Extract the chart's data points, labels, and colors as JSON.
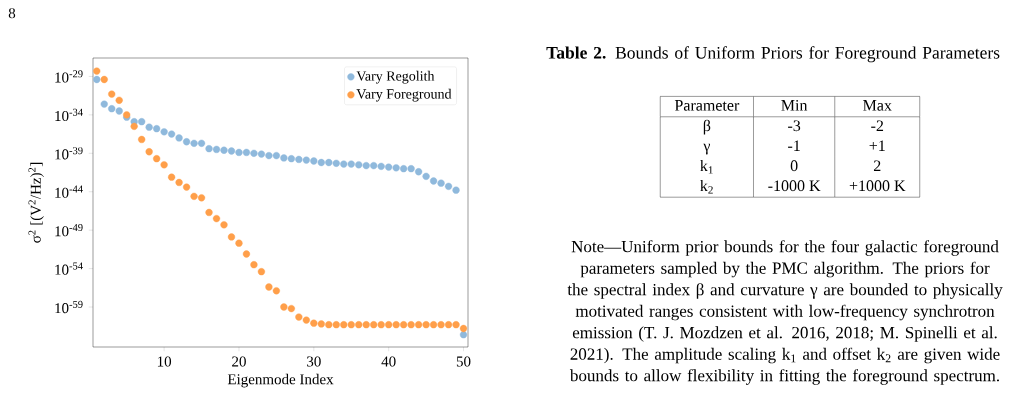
{
  "chart_data": [
    {
      "type": "scatter",
      "xlabel": "Eigenmode Index",
      "ylabel": "σ$^{2}$ [(V$^{2}$/Hz)$^{2}$]",
      "x": [
        1,
        2,
        3,
        4,
        5,
        6,
        7,
        8,
        9,
        10,
        11,
        12,
        13,
        14,
        15,
        16,
        17,
        18,
        19,
        20,
        21,
        22,
        23,
        24,
        25,
        26,
        27,
        28,
        29,
        30,
        31,
        32,
        33,
        34,
        35,
        36,
        37,
        38,
        39,
        40,
        41,
        42,
        43,
        44,
        45,
        46,
        47,
        48,
        49,
        50
      ],
      "series": [
        {
          "name": "Vary Regolith",
          "color": "#8fb9dc",
          "values": [
            4e-30,
            2.5e-33,
            6.3e-34,
            3.2e-34,
            5e-35,
            1.3e-35,
            1.3e-35,
            2.5e-36,
            1.6e-36,
            6.3e-37,
            3.2e-37,
            1e-37,
            3.2e-38,
            2e-38,
            2e-38,
            4e-39,
            3.2e-39,
            2.5e-39,
            2e-39,
            1.3e-39,
            1.3e-39,
            1e-39,
            7.9e-40,
            5e-40,
            5e-40,
            2.5e-40,
            2e-40,
            1.6e-40,
            1.3e-40,
            1e-40,
            6.3e-41,
            6.3e-41,
            5e-41,
            4e-41,
            4e-41,
            3.2e-41,
            2.5e-41,
            2.5e-41,
            2e-41,
            1.6e-41,
            1.3e-41,
            1e-41,
            1e-41,
            4e-42,
            1e-42,
            2.5e-43,
            1.3e-43,
            5e-44,
            1.6e-44,
            2.5e-63
          ]
        },
        {
          "name": "Vary Foreground",
          "color": "#ff9f4a",
          "values": [
            5e-29,
            4e-30,
            5e-32,
            7.9e-33,
            1e-34,
            3.2e-36,
            6.3e-38,
            1.6e-39,
            2e-40,
            3.2e-41,
            7.9e-43,
            1.6e-43,
            4e-44,
            2.5e-45,
            1.6e-45,
            2e-47,
            3.2e-48,
            5e-49,
            1.3e-50,
            2e-51,
            7.9e-53,
            3.2e-54,
            4e-55,
            4e-57,
            1.3e-57,
            1e-59,
            6.3e-60,
            5e-61,
            2e-61,
            7.9e-62,
            6.3e-62,
            5e-62,
            5e-62,
            5e-62,
            5e-62,
            5e-62,
            5e-62,
            5e-62,
            5e-62,
            5e-62,
            5e-62,
            5e-62,
            5e-62,
            5e-62,
            5e-62,
            5e-62,
            5e-62,
            5e-62,
            5e-62,
            1.6e-62
          ]
        }
      ],
      "xlim": [
        0.5,
        50.6
      ],
      "ylim": [
        6.3e-65,
        2.5e-27
      ],
      "log": "y",
      "xticks": [
        10,
        20,
        30,
        40,
        50
      ],
      "yticks": [
        {
          "value": 1e-29,
          "label": "10$^{-29}$"
        },
        {
          "value": 1e-34,
          "label": "10$^{-34}$"
        },
        {
          "value": 1e-39,
          "label": "10$^{-39}$"
        },
        {
          "value": 1e-44,
          "label": "10$^{-44}$"
        },
        {
          "value": 1e-49,
          "label": "10$^{-49}$"
        },
        {
          "value": 1e-54,
          "label": "10$^{-54}$"
        },
        {
          "value": 1e-59,
          "label": "10$^{-59}$"
        }
      ],
      "legend": "top right"
    },
    {
      "type": "other",
      "title": "**Table 2.** Bounds of Uniform Priors for Foreground Parameters",
      "annotations": [
        "8",
        "Parameter",
        "Min",
        "Max",
        "β",
        "-3",
        "-2",
        "γ",
        "-1",
        "+1",
        "k$_{1}$",
        "0",
        "2",
        "k$_{2}$",
        "-1000 K",
        "+1000 K",
        "Note—Uniform prior bounds for the four galactic foreground parameters sampled by the PMC algorithm. The priors for the spectral index β and curvature γ are bounded to physically motivated ranges consistent with low-frequency synchrotron emission (T. J. Mozdzen et al. 2016, 2018; M. Spinelli et al. 2021). The amplitude scaling k$_{1}$ and offset k$_{2}$ are given wide bounds to allow flexibility in fitting the foreground spectrum."
      ]
    }
  ]
}
